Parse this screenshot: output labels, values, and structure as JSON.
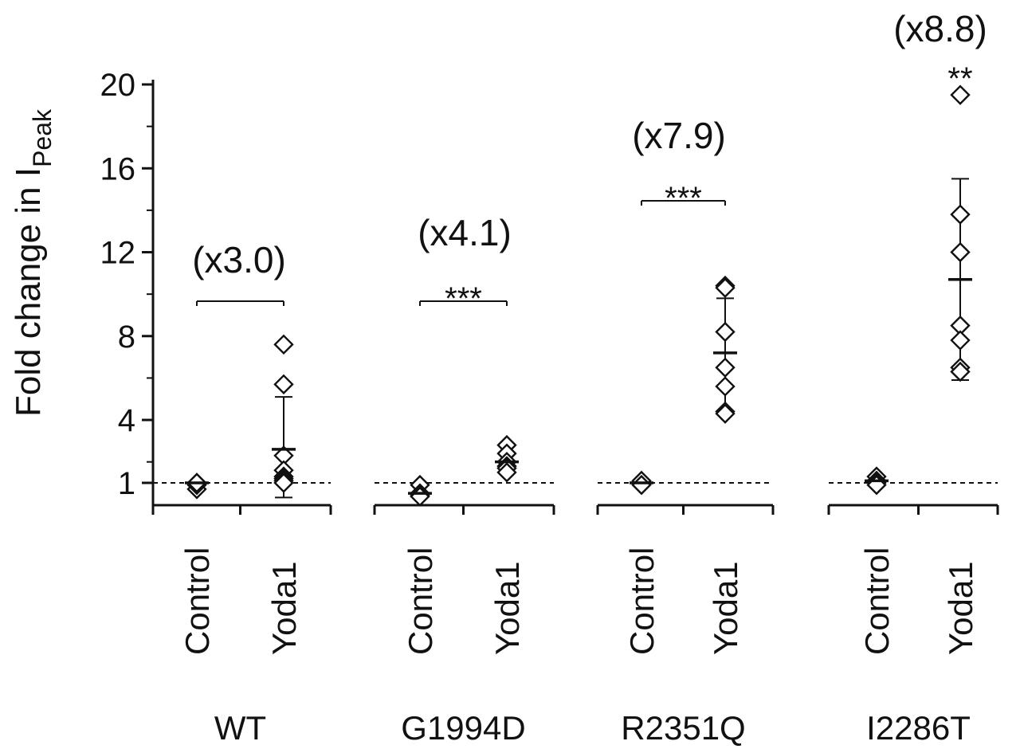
{
  "chart_data": {
    "type": "scatter",
    "ylabel_main": "Fold change in I",
    "ylabel_sub": "Peak",
    "ylim": [
      -0.5,
      21
    ],
    "yticks": [
      1,
      4,
      8,
      12,
      16,
      20
    ],
    "reference_line": 1,
    "groups": [
      {
        "name": "WT",
        "fold_label": "(x3.0)",
        "significance": "",
        "conditions": [
          {
            "label": "Control",
            "points": [
              0.7,
              0.9,
              1.0,
              1.0
            ],
            "mean": 1.0,
            "sd_low": 1.0,
            "sd_high": 1.0
          },
          {
            "label": "Yoda1",
            "points": [
              7.6,
              5.7,
              2.3,
              1.6,
              1.3,
              1.2,
              1.1,
              1.0
            ],
            "mean": 2.6,
            "sd_low": 0.3,
            "sd_high": 5.1
          }
        ]
      },
      {
        "name": "G1994D",
        "fold_label": "(x4.1)",
        "significance": "***",
        "conditions": [
          {
            "label": "Control",
            "points": [
              0.9,
              0.5,
              0.4,
              0.35
            ],
            "mean": 0.5,
            "sd_low": 0.5,
            "sd_high": 0.5
          },
          {
            "label": "Yoda1",
            "points": [
              2.8,
              2.4,
              2.0,
              1.8,
              1.7,
              1.5
            ],
            "mean": 2.0,
            "sd_low": 2.0,
            "sd_high": 2.0
          }
        ]
      },
      {
        "name": "R2351Q",
        "fold_label": "(x7.9)",
        "significance": "***",
        "conditions": [
          {
            "label": "Control",
            "points": [
              1.0,
              1.0,
              1.1,
              0.9
            ],
            "mean": 1.0,
            "sd_low": 1.0,
            "sd_high": 1.0
          },
          {
            "label": "Yoda1",
            "points": [
              10.4,
              10.3,
              8.2,
              6.5,
              5.6,
              4.4,
              4.3
            ],
            "mean": 7.2,
            "sd_low": 4.4,
            "sd_high": 9.8
          }
        ]
      },
      {
        "name": "I2286T",
        "fold_label": "(x8.8)",
        "significance": "**",
        "conditions": [
          {
            "label": "Control",
            "points": [
              1.3,
              1.1,
              1.0,
              0.9
            ],
            "mean": 1.1,
            "sd_low": 1.1,
            "sd_high": 1.1
          },
          {
            "label": "Yoda1",
            "points": [
              19.5,
              13.8,
              12.0,
              8.5,
              7.8,
              6.5,
              6.3
            ],
            "mean": 10.7,
            "sd_low": 5.9,
            "sd_high": 15.5
          }
        ]
      }
    ]
  }
}
